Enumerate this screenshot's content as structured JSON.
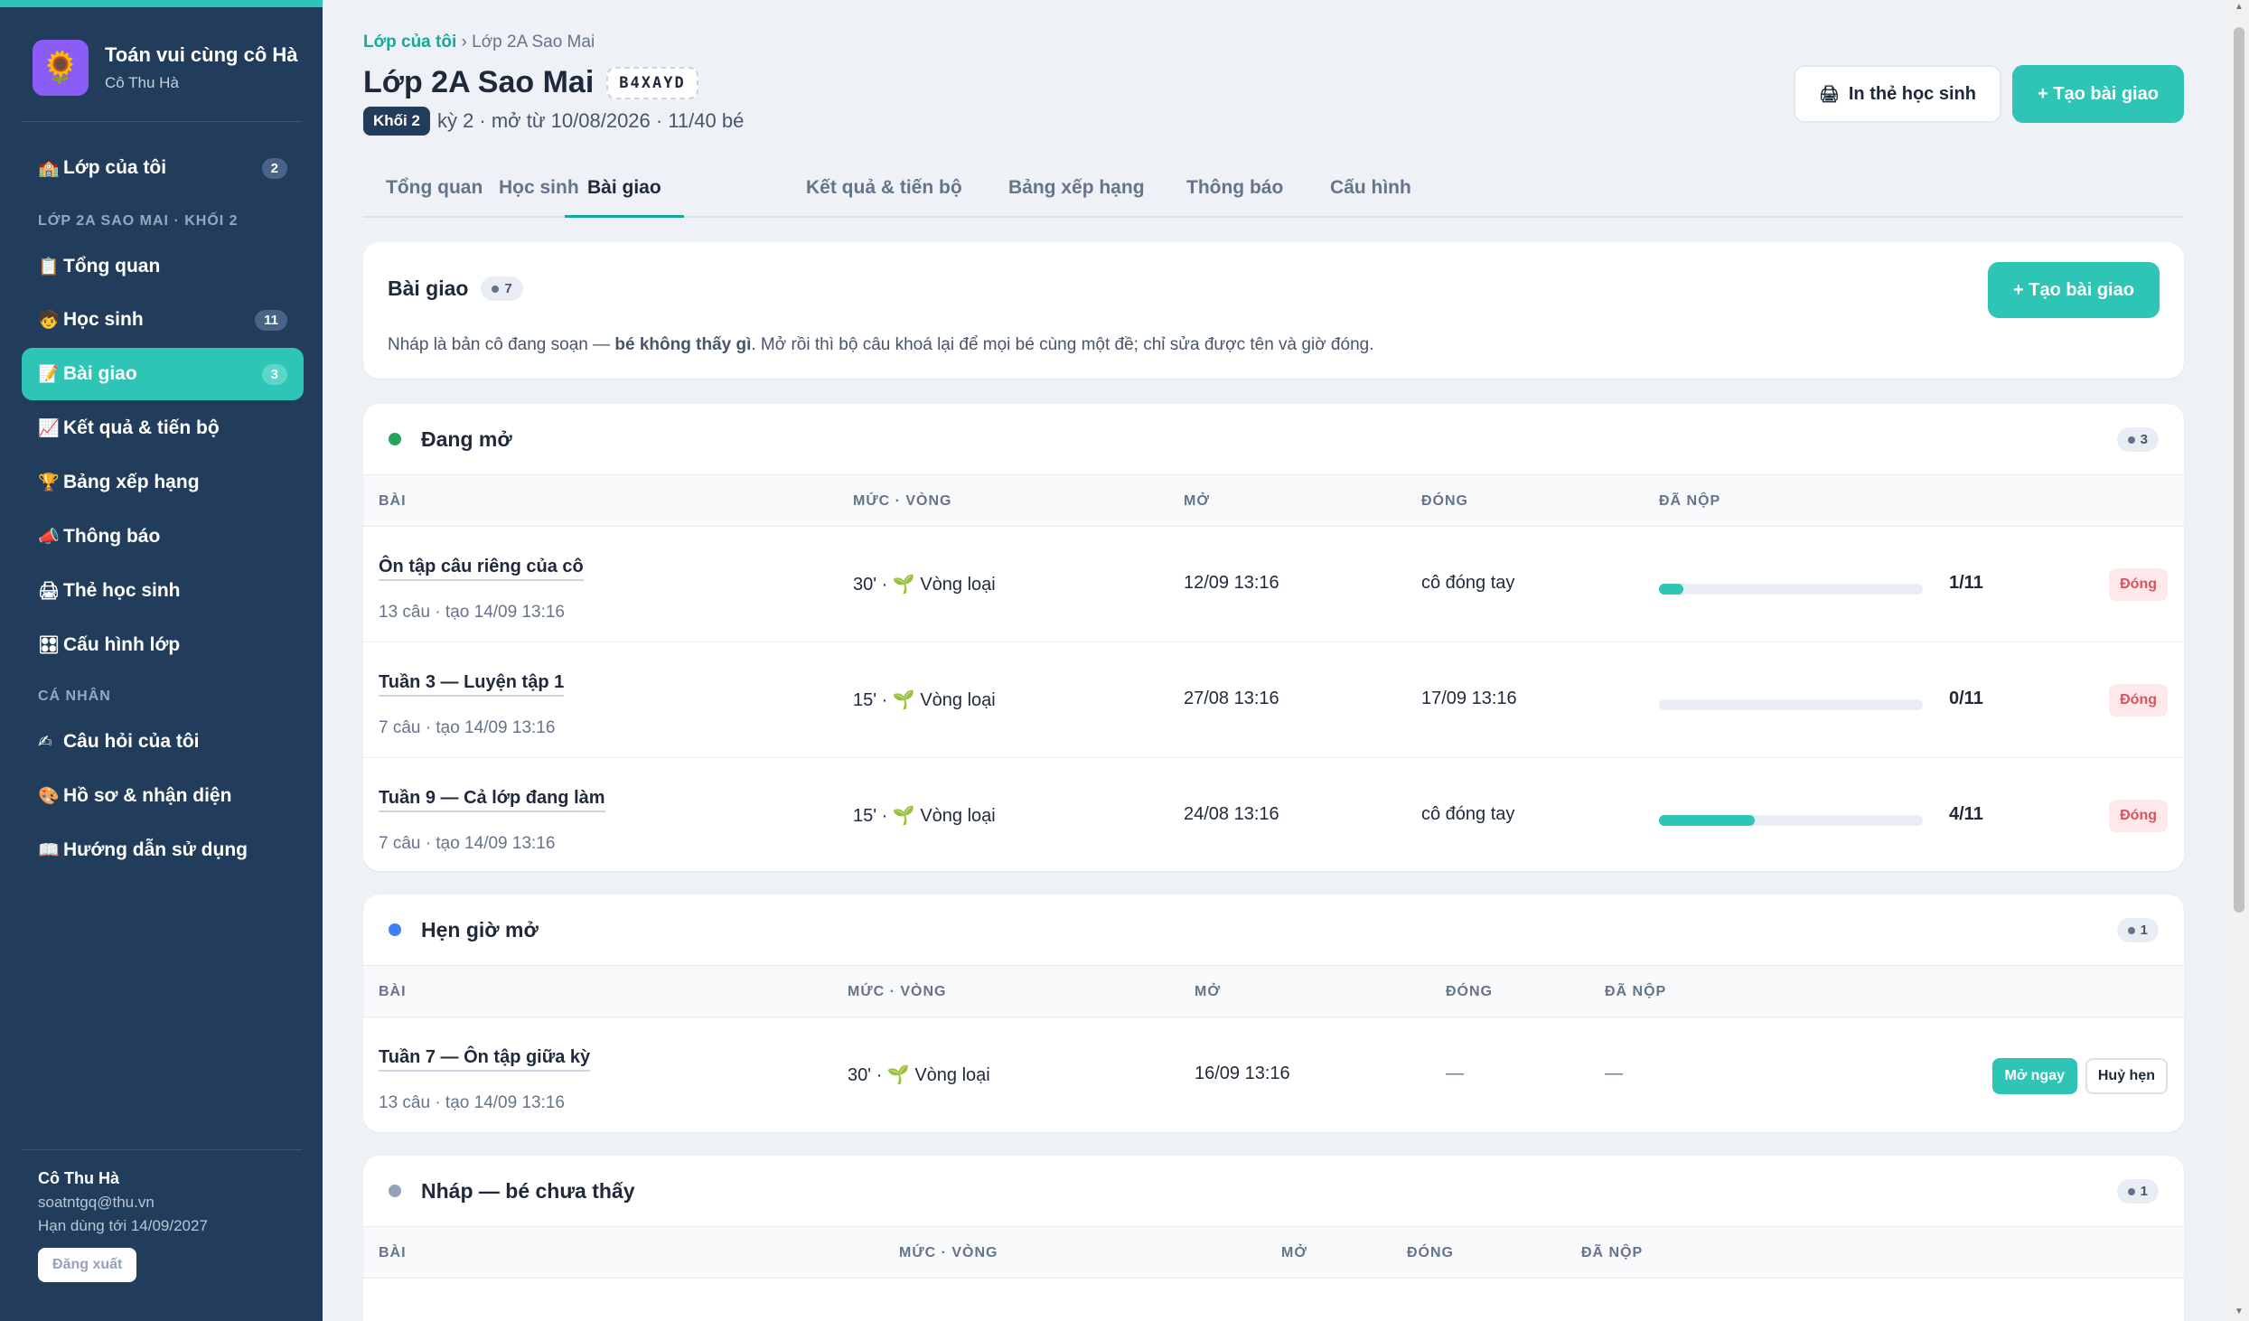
{
  "sidebar": {
    "brand_logo": "🌻",
    "brand_title": "Toán vui cùng cô Hà",
    "brand_sub": "Cô Thu Hà",
    "items": [
      {
        "icon": "🏫",
        "label": "Lớp của tôi",
        "count": "2"
      },
      {
        "icon": "📋",
        "label": "Tổng quan"
      },
      {
        "icon": "🧒",
        "label": "Học sinh",
        "count": "11"
      },
      {
        "icon": "📝",
        "label": "Bài giao",
        "count": "3"
      },
      {
        "icon": "📈",
        "label": "Kết quả & tiến bộ"
      },
      {
        "icon": "🏆",
        "label": "Bảng xếp hạng"
      },
      {
        "icon": "📣",
        "label": "Thông báo"
      },
      {
        "icon": "🖨",
        "label": "Thẻ học sinh"
      },
      {
        "icon": "🎛",
        "label": "Cấu hình lớp"
      },
      {
        "icon": "✍",
        "label": "Câu hỏi của tôi"
      },
      {
        "icon": "🎨",
        "label": "Hồ sơ & nhận diện"
      },
      {
        "icon": "📖",
        "label": "Hướng dẫn sử dụng"
      }
    ],
    "section_class": "LỚP 2A SAO MAI · KHỐI 2",
    "section_personal": "CÁ NHÂN",
    "user": {
      "name": "Cô Thu Hà",
      "email": "soatntgq@thu.vn",
      "expiry": "Hạn dùng tới 14/09/2027",
      "logout": "Đăng xuất"
    }
  },
  "header": {
    "breadcrumb_link": "Lớp của tôi",
    "breadcrumb_sep": "›",
    "breadcrumb_current": "Lớp 2A Sao Mai",
    "title": "Lớp 2A Sao Mai",
    "class_code": "B4XAYD",
    "grade": "Khối 2",
    "meta": "kỳ 2 · mở từ 10/08/2026 · 11/40 bé",
    "print_icon": "🖨",
    "print_label": "In thẻ học sinh",
    "create_label": "+ Tạo bài giao"
  },
  "tabs": [
    "Tổng quan",
    "Học sinh",
    "Bài giao",
    "Kết quả & tiến bộ",
    "Bảng xếp hạng",
    "Thông báo",
    "Cấu hình"
  ],
  "intro": {
    "title": "Bài giao",
    "count": "7",
    "create_label": "+ Tạo bài giao",
    "note_prefix": "Nháp là bản cô đang soạn — ",
    "note_bold": "bé không thấy gì",
    "note_suffix": ". Mở rồi thì bộ câu khoá lại để mọi bé cùng một đề; chỉ sửa được tên và giờ đóng."
  },
  "columns": {
    "bai": "BÀI",
    "muc": "MỨC · VÒNG",
    "mo": "MỞ",
    "dong": "ĐÓNG",
    "danop": "ĐÃ NỘP"
  },
  "open_section": {
    "title": "Đang mở",
    "count": "3",
    "dot_color": "#22a55a",
    "rows": [
      {
        "title": "Ôn tập câu riêng của cô",
        "sub": "13 câu · tạo 14/09 13:16",
        "level": "30' · ",
        "round_icon": "🌱",
        "round": "Vòng loại",
        "open": "12/09 13:16",
        "close": "cô đóng tay",
        "submitted": 1,
        "total": 11,
        "submitted_text": "1/11",
        "action": "Đóng"
      },
      {
        "title": "Tuần 3 — Luyện tập 1",
        "sub": "7 câu · tạo 14/09 13:16",
        "level": "15' · ",
        "round_icon": "🌱",
        "round": "Vòng loại",
        "open": "27/08 13:16",
        "close": "17/09 13:16",
        "submitted": 0,
        "total": 11,
        "submitted_text": "0/11",
        "action": "Đóng"
      },
      {
        "title": "Tuần 9 — Cả lớp đang làm",
        "sub": "7 câu · tạo 14/09 13:16",
        "level": "15' · ",
        "round_icon": "🌱",
        "round": "Vòng loại",
        "open": "24/08 13:16",
        "close": "cô đóng tay",
        "submitted": 4,
        "total": 11,
        "submitted_text": "4/11",
        "action": "Đóng"
      }
    ]
  },
  "scheduled_section": {
    "title": "Hẹn giờ mở",
    "count": "1",
    "dot_color": "#3b82f6",
    "rows": [
      {
        "title": "Tuần 7 — Ôn tập giữa kỳ",
        "sub": "13 câu · tạo 14/09 13:16",
        "level": "30' · ",
        "round_icon": "🌱",
        "round": "Vòng loại",
        "open": "16/09 13:16",
        "close": "—",
        "submitted_text": "—",
        "open_now": "Mở ngay",
        "cancel": "Huỷ hẹn"
      }
    ]
  },
  "draft_section": {
    "title": "Nháp — bé chưa thấy",
    "count": "1",
    "dot_color": "#94a3b8"
  }
}
